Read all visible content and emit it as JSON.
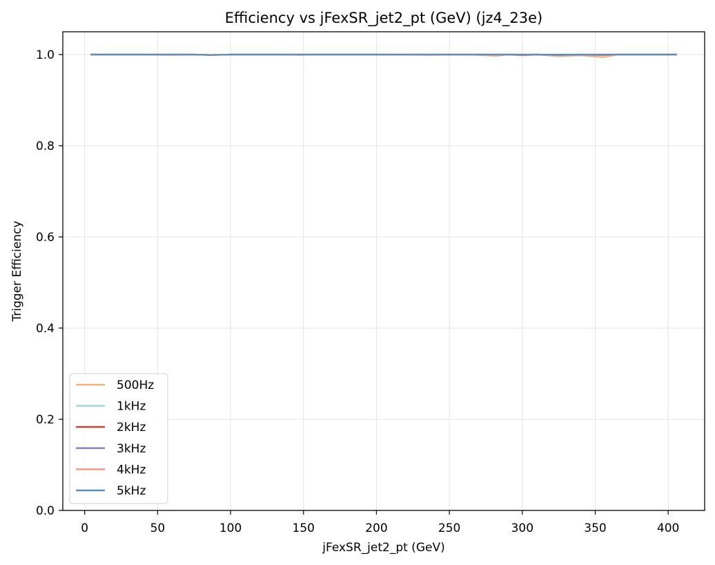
{
  "chart_data": {
    "type": "line",
    "title": "Efficiency vs jFexSR_jet2_pt (GeV) (jz4_23e)",
    "xlabel": "jFexSR_jet2_pt (GeV)",
    "ylabel": "Trigger Efficiency",
    "xlim": [
      -15,
      425
    ],
    "ylim": [
      0,
      1.05
    ],
    "xticks": [
      0,
      50,
      100,
      150,
      200,
      250,
      300,
      350,
      400
    ],
    "yticks": [
      0.0,
      0.2,
      0.4,
      0.6,
      0.8,
      1.0
    ],
    "xtick_labels": [
      "0",
      "50",
      "100",
      "150",
      "200",
      "250",
      "300",
      "350",
      "400"
    ],
    "ytick_labels": [
      "0.0",
      "0.2",
      "0.4",
      "0.6",
      "0.8",
      "1.0"
    ],
    "grid": true,
    "legend_position": "lower-left",
    "x": [
      4,
      40,
      60,
      75,
      86,
      100,
      130,
      150,
      155,
      200,
      240,
      260,
      270,
      282,
      290,
      300,
      310,
      325,
      340,
      356,
      365,
      380,
      406
    ],
    "series": [
      {
        "name": "500Hz",
        "color": "#f0b27a",
        "values": [
          1.0,
          1.0,
          0.999,
          1.0,
          0.999,
          1.0,
          1.0,
          0.999,
          1.0,
          1.0,
          0.999,
          1.0,
          0.999,
          0.997,
          1.0,
          0.998,
          1.0,
          0.996,
          0.998,
          0.994,
          1.0,
          1.0,
          1.0
        ]
      },
      {
        "name": "1kHz",
        "color": "#a8d5e2",
        "values": [
          1.0,
          1.0,
          1.0,
          1.0,
          0.999,
          1.0,
          1.0,
          1.0,
          1.0,
          1.0,
          1.0,
          1.0,
          1.0,
          0.999,
          1.0,
          0.999,
          1.0,
          0.998,
          0.999,
          0.998,
          1.0,
          1.0,
          1.0
        ]
      },
      {
        "name": "2kHz",
        "color": "#c94a44",
        "values": [
          1.0,
          1.0,
          1.0,
          1.0,
          0.999,
          1.0,
          1.0,
          1.0,
          1.0,
          1.0,
          1.0,
          1.0,
          1.0,
          1.0,
          1.0,
          0.999,
          1.0,
          0.999,
          1.0,
          0.999,
          1.0,
          1.0,
          1.0
        ]
      },
      {
        "name": "3kHz",
        "color": "#8a87b8",
        "values": [
          1.0,
          1.0,
          1.0,
          1.0,
          0.999,
          1.0,
          1.0,
          1.0,
          1.0,
          1.0,
          1.0,
          1.0,
          1.0,
          1.0,
          1.0,
          1.0,
          1.0,
          0.999,
          1.0,
          1.0,
          1.0,
          1.0,
          1.0
        ]
      },
      {
        "name": "4kHz",
        "color": "#ee9b8c",
        "values": [
          1.0,
          1.0,
          1.0,
          1.0,
          0.999,
          1.0,
          1.0,
          1.0,
          1.0,
          1.0,
          1.0,
          1.0,
          1.0,
          1.0,
          1.0,
          1.0,
          1.0,
          1.0,
          1.0,
          1.0,
          1.0,
          1.0,
          1.0
        ]
      },
      {
        "name": "5kHz",
        "color": "#5b8db8",
        "values": [
          1.0,
          1.0,
          1.0,
          1.0,
          0.999,
          1.0,
          1.0,
          1.0,
          1.0,
          1.0,
          1.0,
          1.0,
          1.0,
          1.0,
          1.0,
          1.0,
          1.0,
          1.0,
          1.0,
          1.0,
          1.0,
          1.0,
          1.0
        ]
      }
    ]
  }
}
